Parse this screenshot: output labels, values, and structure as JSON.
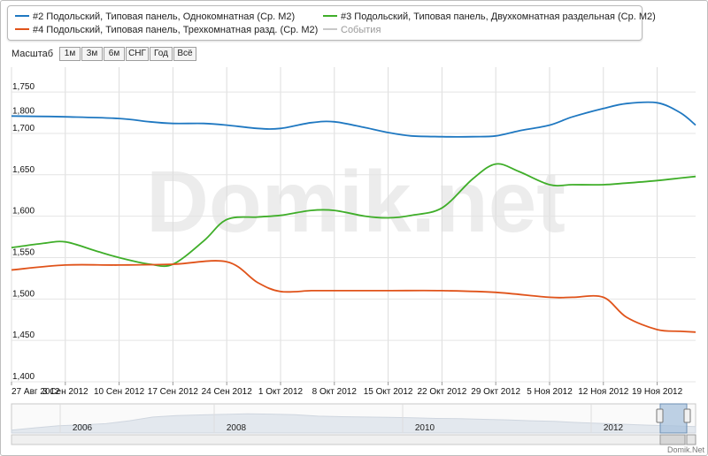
{
  "chart_data": {
    "type": "line",
    "title": "",
    "xlabel": "",
    "ylabel": "",
    "ylim": [
      1400,
      1780
    ],
    "y_ticks": [
      "1,400",
      "1,450",
      "1,500",
      "1,550",
      "1,600",
      "1,650",
      "1,700",
      "1,750",
      "1,800"
    ],
    "x_ticks": [
      "27 Авг 2012",
      "3 Сен 2012",
      "10 Сен 2012",
      "17 Сен 2012",
      "24 Сен 2012",
      "1 Окт 2012",
      "8 Окт 2012",
      "15 Окт 2012",
      "22 Окт 2012",
      "29 Окт 2012",
      "5 Ноя 2012",
      "12 Ноя 2012",
      "19 Ноя 2012"
    ],
    "x_start": "2012-08-27",
    "x_end": "2012-11-24",
    "grid": true,
    "series": [
      {
        "name": "#2 Подольский, Типовая панель, Однокомнатная (Ср. М2)",
        "color": "#1f78c1",
        "points": [
          [
            "2012-08-27",
            1721
          ],
          [
            "2012-09-03",
            1720
          ],
          [
            "2012-09-10",
            1718
          ],
          [
            "2012-09-14",
            1714
          ],
          [
            "2012-09-17",
            1712
          ],
          [
            "2012-09-21",
            1712
          ],
          [
            "2012-09-24",
            1710
          ],
          [
            "2012-09-28",
            1706
          ],
          [
            "2012-10-01",
            1706
          ],
          [
            "2012-10-05",
            1713
          ],
          [
            "2012-10-08",
            1714
          ],
          [
            "2012-10-12",
            1707
          ],
          [
            "2012-10-15",
            1701
          ],
          [
            "2012-10-18",
            1697
          ],
          [
            "2012-10-22",
            1696
          ],
          [
            "2012-10-26",
            1696
          ],
          [
            "2012-10-29",
            1697
          ],
          [
            "2012-11-01",
            1703
          ],
          [
            "2012-11-05",
            1710
          ],
          [
            "2012-11-08",
            1720
          ],
          [
            "2012-11-12",
            1730
          ],
          [
            "2012-11-15",
            1736
          ],
          [
            "2012-11-19",
            1737
          ],
          [
            "2012-11-22",
            1725
          ],
          [
            "2012-11-24",
            1710
          ]
        ]
      },
      {
        "name": "#3 Подольский, Типовая панель, Двухкомнатная раздельная (Ср. М2)",
        "color": "#3fae29",
        "points": [
          [
            "2012-08-27",
            1562
          ],
          [
            "2012-08-31",
            1567
          ],
          [
            "2012-09-03",
            1569
          ],
          [
            "2012-09-07",
            1558
          ],
          [
            "2012-09-10",
            1550
          ],
          [
            "2012-09-14",
            1542
          ],
          [
            "2012-09-17",
            1542
          ],
          [
            "2012-09-21",
            1570
          ],
          [
            "2012-09-24",
            1596
          ],
          [
            "2012-09-28",
            1599
          ],
          [
            "2012-10-01",
            1601
          ],
          [
            "2012-10-05",
            1607
          ],
          [
            "2012-10-08",
            1607
          ],
          [
            "2012-10-12",
            1600
          ],
          [
            "2012-10-15",
            1598
          ],
          [
            "2012-10-18",
            1601
          ],
          [
            "2012-10-22",
            1610
          ],
          [
            "2012-10-26",
            1645
          ],
          [
            "2012-10-29",
            1663
          ],
          [
            "2012-11-01",
            1654
          ],
          [
            "2012-11-05",
            1638
          ],
          [
            "2012-11-08",
            1638
          ],
          [
            "2012-11-12",
            1638
          ],
          [
            "2012-11-15",
            1640
          ],
          [
            "2012-11-19",
            1643
          ],
          [
            "2012-11-22",
            1646
          ],
          [
            "2012-11-24",
            1648
          ]
        ]
      },
      {
        "name": "#4 Подольский, Трехкомнатная разд. (Ср. М2)",
        "color": "#e0531a",
        "points": [
          [
            "2012-08-27",
            1535
          ],
          [
            "2012-09-03",
            1541
          ],
          [
            "2012-09-10",
            1541
          ],
          [
            "2012-09-17",
            1542
          ],
          [
            "2012-09-24",
            1545
          ],
          [
            "2012-09-28",
            1520
          ],
          [
            "2012-10-01",
            1509
          ],
          [
            "2012-10-05",
            1510
          ],
          [
            "2012-10-08",
            1510
          ],
          [
            "2012-10-15",
            1510
          ],
          [
            "2012-10-22",
            1510
          ],
          [
            "2012-10-29",
            1508
          ],
          [
            "2012-11-05",
            1502
          ],
          [
            "2012-11-08",
            1502
          ],
          [
            "2012-11-12",
            1502
          ],
          [
            "2012-11-15",
            1478
          ],
          [
            "2012-11-19",
            1463
          ],
          [
            "2012-11-22",
            1461
          ],
          [
            "2012-11-24",
            1460
          ]
        ]
      }
    ],
    "events_label": "События",
    "navigator_labels": [
      "2006",
      "2008",
      "2010",
      "2012"
    ]
  },
  "legend_items": [
    {
      "label": "#2 Подольский, Типовая панель, Однокомнатная (Ср. М2)",
      "color": "#1f78c1"
    },
    {
      "label": "#3 Подольский, Типовая панель, Двухкомнатная раздельная (Ср. М2)",
      "color": "#3fae29"
    },
    {
      "label": "#4 Подольский, Типовая панель, Трехкомнатная разд. (Ср. М2)",
      "color": "#e0531a"
    },
    {
      "label": "События",
      "color": "#c8c8c8"
    }
  ],
  "zoom": {
    "label": "Масштаб",
    "buttons": [
      "1м",
      "3м",
      "6м",
      "СНГ",
      "Год",
      "Всё"
    ]
  },
  "watermark": "Domik.net",
  "credit": "Domik.Net"
}
